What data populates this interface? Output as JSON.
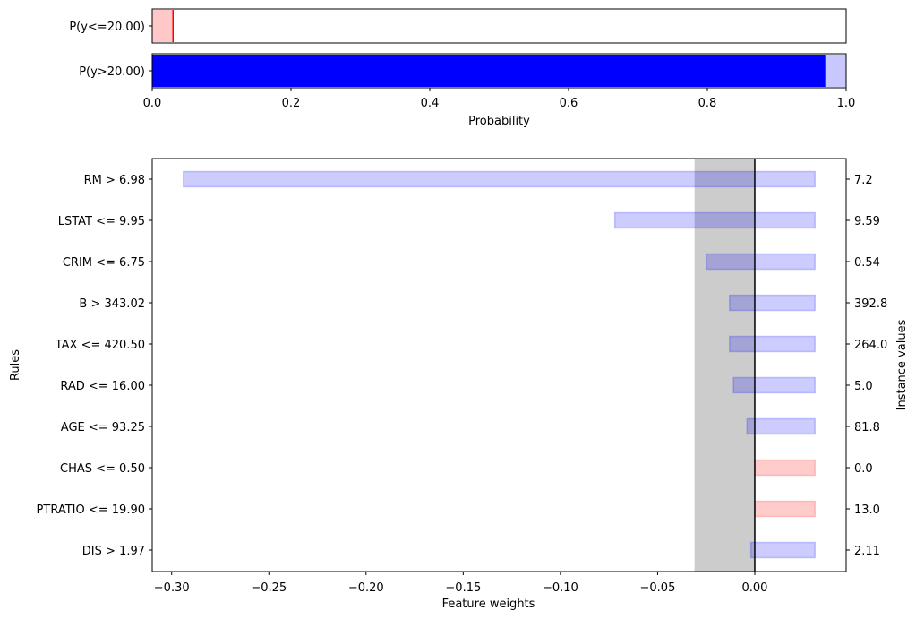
{
  "chart_data": [
    {
      "type": "bar",
      "orientation": "horizontal",
      "categories": [
        "P(y<=20.00)",
        "P(y>20.00)"
      ],
      "values": [
        0.03,
        0.97
      ],
      "uncertainty": [
        [
          0.0,
          0.03
        ],
        [
          0.97,
          1.0
        ]
      ],
      "colors": [
        "#ff0000",
        "#0000ff"
      ],
      "xlabel": "Probability",
      "xlim": [
        0,
        1
      ],
      "x_ticks": [
        "0.0",
        "0.2",
        "0.4",
        "0.6",
        "0.8",
        "1.0"
      ]
    },
    {
      "type": "bar",
      "orientation": "horizontal",
      "categories": [
        "RM > 6.98",
        "LSTAT <= 9.95",
        "CRIM <= 6.75",
        "B > 343.02",
        "TAX <= 420.50",
        "RAD <= 16.00",
        "AGE <= 93.25",
        "CHAS <= 0.50",
        "PTRATIO <= 19.90",
        "DIS > 1.97"
      ],
      "intervals": [
        [
          -0.294,
          0.031
        ],
        [
          -0.072,
          0.031
        ],
        [
          -0.025,
          0.031
        ],
        [
          -0.013,
          0.031
        ],
        [
          -0.013,
          0.031
        ],
        [
          -0.011,
          0.031
        ],
        [
          -0.004,
          0.031
        ],
        [
          0.0,
          0.031
        ],
        [
          0.0,
          0.031
        ],
        [
          -0.002,
          0.031
        ]
      ],
      "instance_values": [
        "7.2",
        "9.59",
        "0.54",
        "392.8",
        "264.0",
        "5.0",
        "81.8",
        "0.0",
        "13.0",
        "2.11"
      ],
      "bar_colors": [
        "#0000ff",
        "#0000ff",
        "#0000ff",
        "#0000ff",
        "#0000ff",
        "#0000ff",
        "#0000ff",
        "#ff0000",
        "#ff0000",
        "#0000ff"
      ],
      "shaded_band": [
        -0.031,
        0.0
      ],
      "xlabel": "Feature weights",
      "ylabel": "Rules",
      "y2label": "Instance values",
      "xlim": [
        -0.31,
        0.047
      ],
      "x_ticks": [
        -0.3,
        -0.25,
        -0.2,
        -0.15,
        -0.1,
        -0.05,
        0.0
      ],
      "x_tick_labels": [
        "−0.30",
        "−0.25",
        "−0.20",
        "−0.15",
        "−0.10",
        "−0.05",
        "0.00"
      ]
    }
  ]
}
